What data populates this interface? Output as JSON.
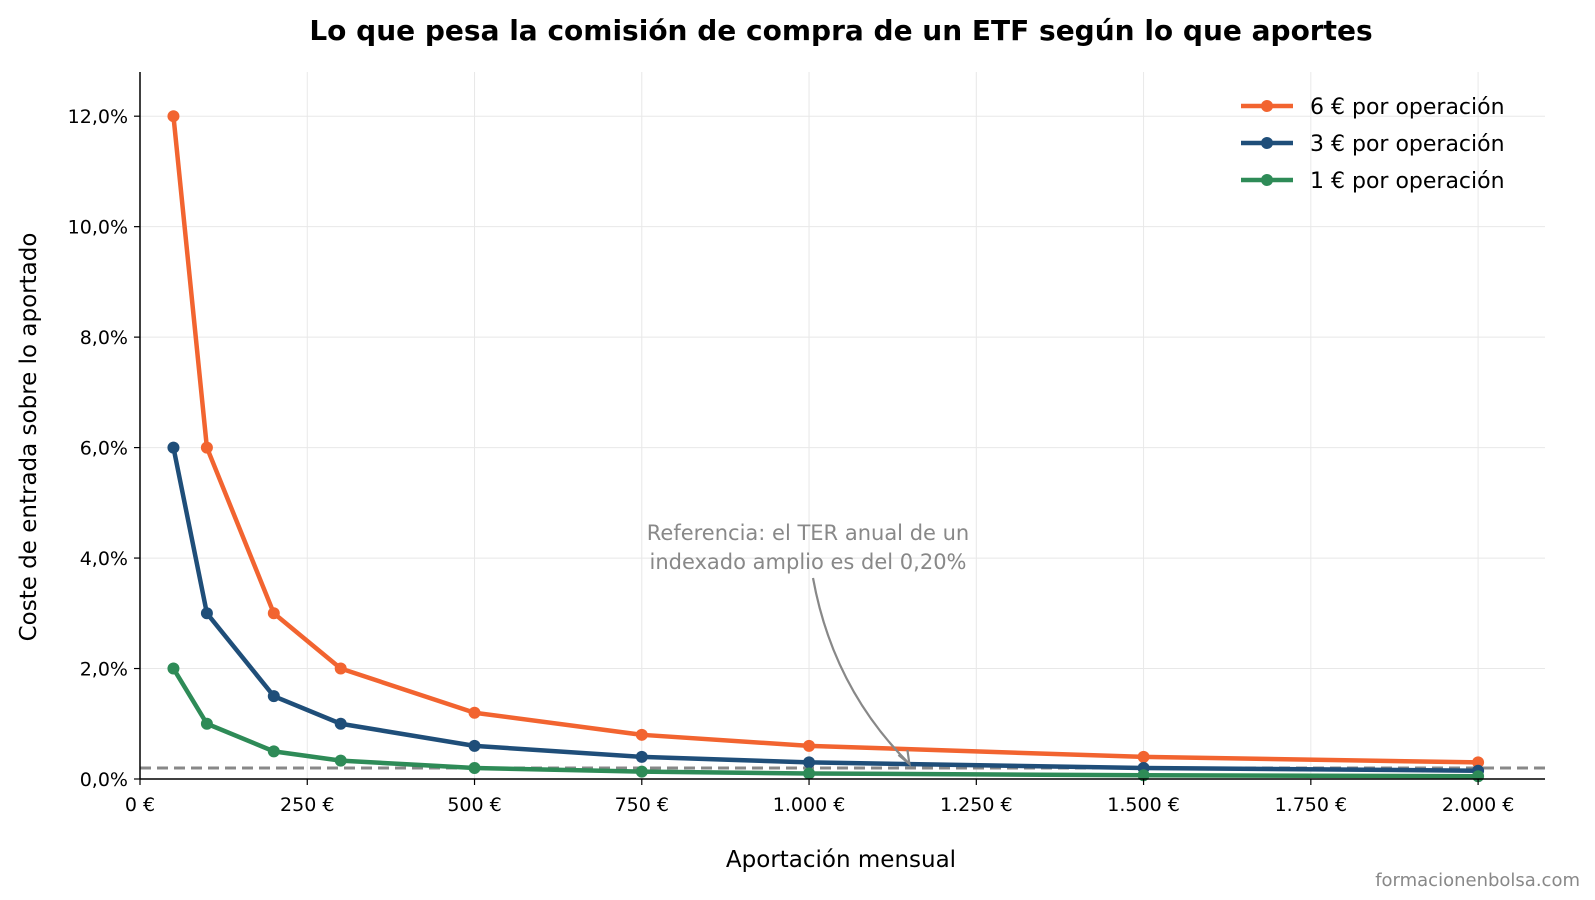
{
  "chart_data": {
    "type": "line",
    "title": "Lo que pesa la comisión de compra de un ETF según lo que aportes",
    "xlabel": "Aportación mensual",
    "ylabel": "Coste de entrada sobre lo aportado",
    "xlim": [
      0,
      2100
    ],
    "ylim": [
      0,
      12.8
    ],
    "x_ticks": [
      0,
      250,
      500,
      750,
      1000,
      1250,
      1500,
      1750,
      2000
    ],
    "x_tick_labels": [
      "0 €",
      "250 €",
      "500 €",
      "750 €",
      "1.000 €",
      "1.250 €",
      "1.500 €",
      "1.750 €",
      "2.000 €"
    ],
    "y_ticks": [
      0,
      2,
      4,
      6,
      8,
      10,
      12
    ],
    "y_tick_labels": [
      "0,0%",
      "2,0%",
      "4,0%",
      "6,0%",
      "8,0%",
      "10,0%",
      "12,0%"
    ],
    "grid": true,
    "legend_position": "top-right",
    "x": [
      50,
      100,
      200,
      300,
      500,
      750,
      1000,
      1500,
      2000
    ],
    "series": [
      {
        "name": "6 € por operación",
        "color": "#f26430",
        "values": [
          12.0,
          6.0,
          3.0,
          2.0,
          1.2,
          0.8,
          0.6,
          0.4,
          0.3
        ]
      },
      {
        "name": "3 € por operación",
        "color": "#1f4e79",
        "values": [
          6.0,
          3.0,
          1.5,
          1.0,
          0.6,
          0.4,
          0.3,
          0.2,
          0.15
        ]
      },
      {
        "name": "1 € por operación",
        "color": "#2e8b57",
        "values": [
          2.0,
          1.0,
          0.5,
          0.333,
          0.2,
          0.133,
          0.1,
          0.067,
          0.05
        ]
      }
    ],
    "reference_line": {
      "y": 0.2,
      "color": "#888888",
      "style": "dashed"
    },
    "annotation": {
      "lines": [
        "Referencia: el TER anual de un",
        "indexado amplio es del 0,20%"
      ],
      "target_x": 1150,
      "target_y": 0.2,
      "color": "#888888"
    }
  },
  "watermark": "formacionenbolsa.com"
}
